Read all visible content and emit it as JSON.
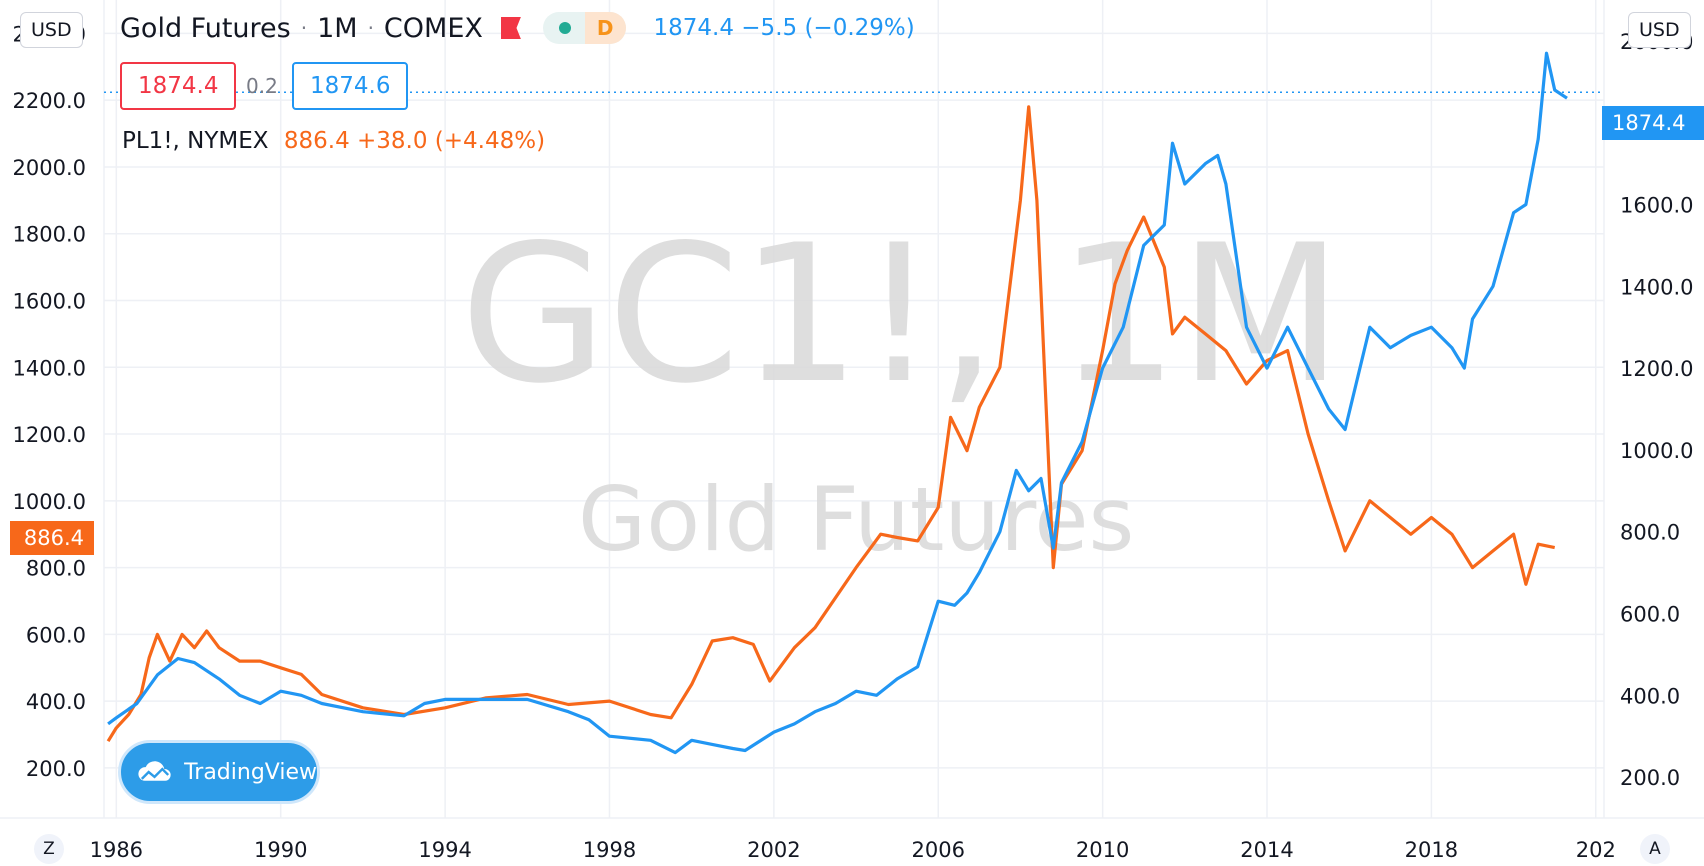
{
  "header": {
    "currency_left": "USD",
    "currency_right": "USD",
    "symbol_title": "Gold Futures",
    "interval": "1M",
    "exchange": "COMEX",
    "status_pill_label": "D",
    "last_quote": "1874.4 −5.5 (−0.29%)",
    "bid": "1874.4",
    "spread": "0.2",
    "ask": "1874.6"
  },
  "compare": {
    "symbol": "PL1!, NYMEX",
    "quote": "886.4 +38.0 (+4.48%)"
  },
  "price_tags": {
    "right": "1874.4",
    "left": "886.4"
  },
  "watermark": {
    "line1": "GC1!, 1M",
    "line2": "Gold Futures"
  },
  "logo_text": "TradingView",
  "corner_buttons": {
    "left": "Z",
    "right": "A"
  },
  "colors": {
    "gold_series": "#2196f3",
    "platinum_series": "#f7681a",
    "grid": "#eef0f5",
    "bid": "#f23645"
  },
  "chart_data": {
    "type": "line",
    "x_ticks": [
      "1986",
      "1990",
      "1994",
      "1998",
      "2002",
      "2006",
      "2010",
      "2014",
      "2018",
      "202"
    ],
    "x_range": [
      1985.7,
      2022.2
    ],
    "left_axis": {
      "ticks": [
        "200.0",
        "400.0",
        "600.0",
        "800.0",
        "1000.0",
        "1200.0",
        "1400.0",
        "1600.0",
        "1800.0",
        "2000.0",
        "2200.0",
        "2400.0"
      ],
      "range": [
        50,
        2500
      ]
    },
    "right_axis": {
      "ticks": [
        "200.0",
        "400.0",
        "600.0",
        "800.0",
        "1000.0",
        "1200.0",
        "1400.0",
        "1600.0",
        "1800.0",
        "2000.0"
      ],
      "range": [
        100,
        2100
      ]
    },
    "grid": true,
    "last_value_line": 1874.4,
    "series": [
      {
        "axis": "right",
        "x": [
          1985.8,
          1986.0,
          1986.5,
          1987.0,
          1987.5,
          1987.9,
          1988.5,
          1989.0,
          1989.5,
          1990.0,
          1990.5,
          1991.0,
          1992.0,
          1993.0,
          1993.5,
          1994.0,
          1995.0,
          1996.0,
          1997.0,
          1997.5,
          1998.0,
          1999.0,
          1999.6,
          2000.0,
          2000.5,
          2001.0,
          2001.3,
          2002.0,
          2002.5,
          2003.0,
          2003.5,
          2004.0,
          2004.5,
          2005.0,
          2005.5,
          2006.0,
          2006.4,
          2006.7,
          2007.0,
          2007.5,
          2007.9,
          2008.2,
          2008.5,
          2008.8,
          2009.0,
          2009.5,
          2010.0,
          2010.5,
          2011.0,
          2011.5,
          2011.7,
          2012.0,
          2012.5,
          2012.8,
          2013.0,
          2013.5,
          2014.0,
          2014.5,
          2015.0,
          2015.5,
          2015.9,
          2016.5,
          2017.0,
          2017.5,
          2018.0,
          2018.5,
          2018.8,
          2019.0,
          2019.5,
          2020.0,
          2020.3,
          2020.6,
          2020.8,
          2021.0,
          2021.3
        ],
        "values": [
          330,
          345,
          380,
          450,
          490,
          480,
          440,
          400,
          380,
          410,
          400,
          380,
          360,
          350,
          380,
          390,
          390,
          390,
          360,
          340,
          300,
          290,
          260,
          290,
          280,
          270,
          265,
          310,
          330,
          360,
          380,
          410,
          400,
          440,
          470,
          630,
          620,
          650,
          700,
          800,
          950,
          900,
          930,
          760,
          920,
          1020,
          1200,
          1300,
          1500,
          1550,
          1750,
          1650,
          1700,
          1720,
          1650,
          1300,
          1200,
          1300,
          1200,
          1100,
          1050,
          1300,
          1250,
          1280,
          1300,
          1250,
          1200,
          1320,
          1400,
          1580,
          1600,
          1760,
          1970,
          1880,
          1860
        ]
      },
      {
        "axis": "left",
        "x": [
          1985.8,
          1986.0,
          1986.3,
          1986.6,
          1986.8,
          1987.0,
          1987.3,
          1987.6,
          1987.9,
          1988.2,
          1988.5,
          1989.0,
          1989.5,
          1990.0,
          1990.5,
          1991.0,
          1992.0,
          1993.0,
          1994.0,
          1995.0,
          1996.0,
          1997.0,
          1998.0,
          1999.0,
          1999.5,
          2000.0,
          2000.5,
          2001.0,
          2001.5,
          2001.9,
          2002.5,
          2003.0,
          2004.0,
          2004.3,
          2004.6,
          2005.0,
          2005.5,
          2006.0,
          2006.3,
          2006.7,
          2007.0,
          2007.5,
          2008.0,
          2008.2,
          2008.4,
          2008.8,
          2009.0,
          2009.5,
          2010.0,
          2010.3,
          2010.6,
          2011.0,
          2011.5,
          2011.7,
          2012.0,
          2012.5,
          2013.0,
          2013.5,
          2014.0,
          2014.5,
          2015.0,
          2015.5,
          2015.9,
          2016.5,
          2017.0,
          2017.5,
          2018.0,
          2018.5,
          2019.0,
          2019.5,
          2020.0,
          2020.3,
          2020.6,
          2021.0
        ],
        "values": [
          280,
          320,
          360,
          420,
          530,
          600,
          520,
          600,
          560,
          610,
          560,
          520,
          520,
          500,
          480,
          420,
          380,
          360,
          380,
          410,
          420,
          390,
          400,
          360,
          350,
          450,
          580,
          590,
          570,
          460,
          560,
          620,
          800,
          850,
          900,
          890,
          880,
          980,
          1250,
          1150,
          1280,
          1400,
          1900,
          2180,
          1900,
          800,
          1050,
          1150,
          1450,
          1650,
          1750,
          1850,
          1700,
          1500,
          1550,
          1500,
          1450,
          1350,
          1420,
          1450,
          1200,
          1000,
          850,
          1000,
          950,
          900,
          950,
          900,
          800,
          850,
          900,
          750,
          870,
          860
        ]
      }
    ]
  }
}
